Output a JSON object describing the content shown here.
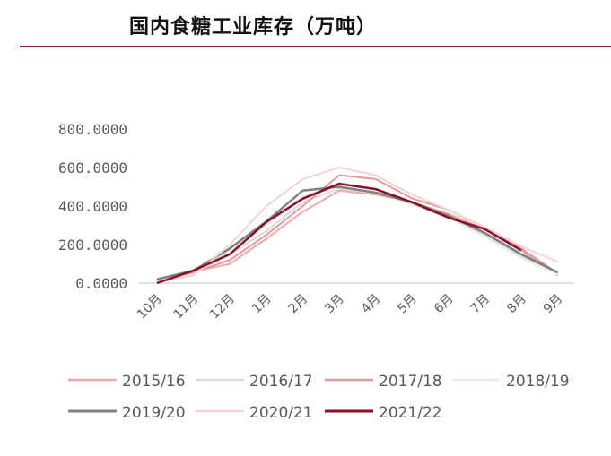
{
  "page": {
    "title": "国内食糖工业库存（万吨）",
    "rule_color": "#8b1a3a"
  },
  "chart_data": {
    "type": "line",
    "categories": [
      "10月",
      "11月",
      "12月",
      "1月",
      "2月",
      "3月",
      "4月",
      "5月",
      "6月",
      "7月",
      "8月",
      "9月"
    ],
    "ylim": [
      0,
      800
    ],
    "yticks": [
      "0.0000",
      "200.0000",
      "400.0000",
      "600.0000",
      "800.0000"
    ],
    "ytick_values": [
      0,
      200,
      400,
      600,
      800
    ],
    "grid": false,
    "legend_placement": "bottom",
    "series": [
      {
        "name": "2015/16",
        "color": "#f2a8a8",
        "width": 2,
        "values": [
          10,
          60,
          100,
          230,
          370,
          480,
          460,
          420,
          360,
          280,
          170,
          40
        ]
      },
      {
        "name": "2016/17",
        "color": "#d9d9d9",
        "width": 2,
        "values": [
          20,
          50,
          150,
          270,
          420,
          490,
          470,
          410,
          340,
          250,
          140,
          50
        ]
      },
      {
        "name": "2017/18",
        "color": "#e49a9a",
        "width": 2,
        "values": [
          10,
          55,
          120,
          250,
          400,
          560,
          540,
          440,
          380,
          290,
          180,
          50
        ]
      },
      {
        "name": "2018/19",
        "color": "#ececec",
        "width": 2,
        "values": [
          15,
          45,
          170,
          300,
          450,
          510,
          490,
          420,
          340,
          240,
          130,
          45
        ]
      },
      {
        "name": "2019/20",
        "color": "#7f7f7f",
        "width": 2.5,
        "values": [
          20,
          65,
          180,
          320,
          480,
          500,
          470,
          420,
          350,
          260,
          150,
          55
        ]
      },
      {
        "name": "2020/21",
        "color": "#f5d3d3",
        "width": 2,
        "values": [
          5,
          40,
          200,
          400,
          540,
          600,
          560,
          460,
          380,
          290,
          190,
          110
        ]
      },
      {
        "name": "2021/22",
        "color": "#8b0f2a",
        "width": 2.5,
        "values": [
          0,
          65,
          150,
          317,
          438,
          516,
          488,
          420,
          340,
          280,
          170,
          null
        ]
      }
    ]
  }
}
